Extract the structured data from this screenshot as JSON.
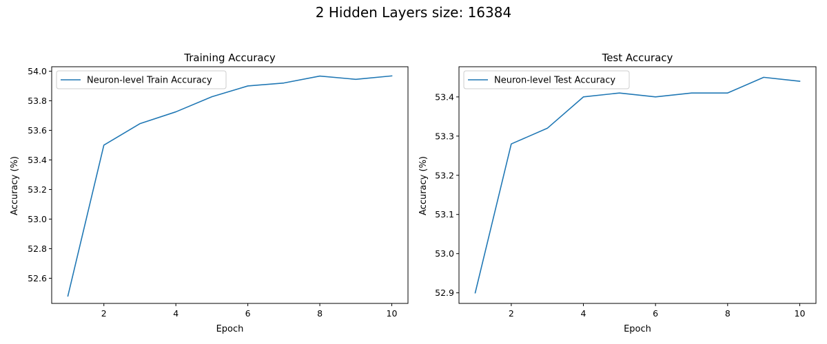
{
  "figure": {
    "suptitle": "2 Hidden Layers size: 16384"
  },
  "chart_data": [
    {
      "type": "line",
      "title": "Training Accuracy",
      "xlabel": "Epoch",
      "ylabel": "Accuracy (%)",
      "xlim": [
        0.55,
        10.45
      ],
      "ylim": [
        52.43,
        54.03
      ],
      "xticks": [
        2,
        4,
        6,
        8,
        10
      ],
      "xtick_labels": [
        "2",
        "4",
        "6",
        "8",
        "10"
      ],
      "yticks": [
        52.6,
        52.8,
        53.0,
        53.2,
        53.4,
        53.6,
        53.8,
        54.0
      ],
      "ytick_labels": [
        "52.6",
        "52.8",
        "53.0",
        "53.2",
        "53.4",
        "53.6",
        "53.8",
        "54.0"
      ],
      "grid": false,
      "legend": "upper-left",
      "series": [
        {
          "name": "Neuron-level Train Accuracy",
          "color": "#1f77b4",
          "x": [
            1,
            2,
            3,
            4,
            5,
            6,
            7,
            8,
            9,
            10
          ],
          "y": [
            52.48,
            53.5,
            53.645,
            53.725,
            53.827,
            53.9,
            53.92,
            53.967,
            53.945,
            53.968
          ]
        }
      ]
    },
    {
      "type": "line",
      "title": "Test Accuracy",
      "xlabel": "Epoch",
      "ylabel": "Accuracy (%)",
      "xlim": [
        0.55,
        10.45
      ],
      "ylim": [
        52.873,
        53.477
      ],
      "xticks": [
        2,
        4,
        6,
        8,
        10
      ],
      "xtick_labels": [
        "2",
        "4",
        "6",
        "8",
        "10"
      ],
      "yticks": [
        52.9,
        53.0,
        53.1,
        53.2,
        53.3,
        53.4
      ],
      "ytick_labels": [
        "52.9",
        "53.0",
        "53.1",
        "53.2",
        "53.3",
        "53.4"
      ],
      "grid": false,
      "legend": "upper-left",
      "series": [
        {
          "name": "Neuron-level Test Accuracy",
          "color": "#1f77b4",
          "x": [
            1,
            2,
            3,
            4,
            5,
            6,
            7,
            8,
            9,
            10
          ],
          "y": [
            52.9,
            53.28,
            53.32,
            53.4,
            53.41,
            53.4,
            53.41,
            53.41,
            53.45,
            53.44
          ]
        }
      ]
    }
  ]
}
